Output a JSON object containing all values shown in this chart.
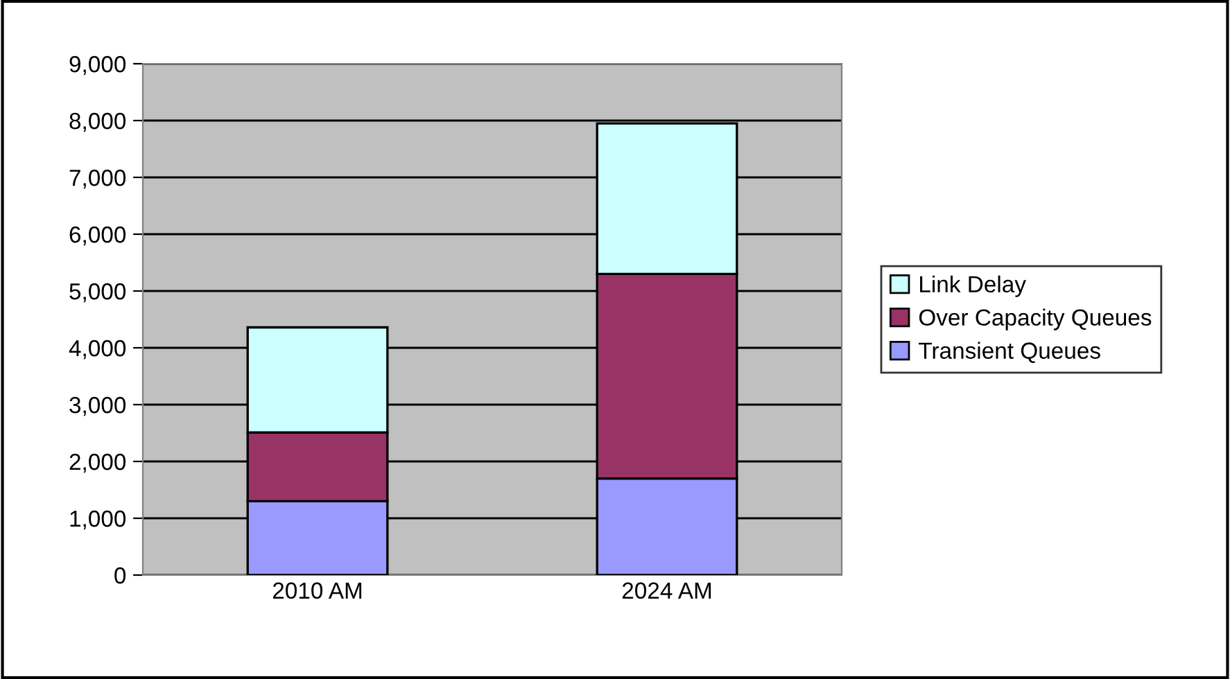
{
  "chart_data": {
    "type": "bar",
    "stacked": true,
    "categories": [
      "2010 AM",
      "2024 AM"
    ],
    "series": [
      {
        "name": "Transient Queues",
        "color": "#9999ff",
        "values": [
          1300,
          1700
        ]
      },
      {
        "name": "Over Capacity Queues",
        "color": "#993366",
        "values": [
          1210,
          3600
        ]
      },
      {
        "name": "Link Delay",
        "color": "#ccffff",
        "values": [
          1850,
          2650
        ]
      }
    ],
    "ylim": [
      0,
      9000
    ],
    "yticks": [
      {
        "value": 0,
        "label": "0"
      },
      {
        "value": 1000,
        "label": "1,000"
      },
      {
        "value": 2000,
        "label": "2,000"
      },
      {
        "value": 3000,
        "label": "3,000"
      },
      {
        "value": 4000,
        "label": "4,000"
      },
      {
        "value": 5000,
        "label": "5,000"
      },
      {
        "value": 6000,
        "label": "6,000"
      },
      {
        "value": 7000,
        "label": "7,000"
      },
      {
        "value": 8000,
        "label": "8,000"
      },
      {
        "value": 9000,
        "label": "9,000"
      }
    ],
    "grid": "y",
    "legend": "right"
  }
}
